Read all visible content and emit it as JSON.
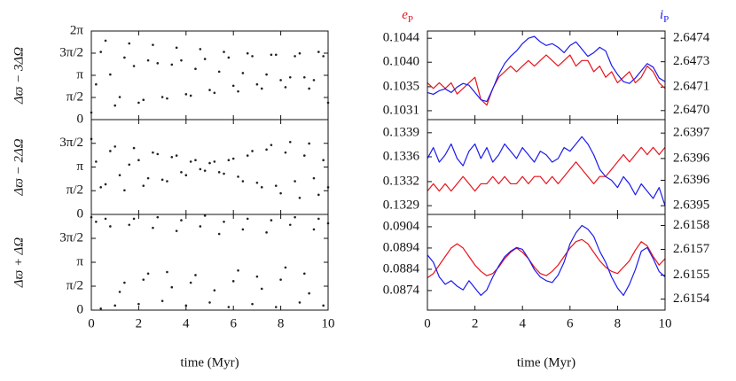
{
  "chart_data": [
    {
      "type": "scatter",
      "ylabel": "Δϖ − 3ΔΩ",
      "color": "#222222",
      "xlim": [
        0,
        10
      ],
      "xticks": [
        0,
        2,
        4,
        6,
        8,
        10
      ],
      "ylim": [
        0,
        6.2832
      ],
      "yticks": [
        0,
        {
          "value": 1.5708,
          "label": "π/2"
        },
        {
          "value": 3.1416,
          "label": "π"
        },
        {
          "value": 4.7124,
          "label": "3π/2"
        },
        {
          "value": 6.2832,
          "label": "2π"
        }
      ],
      "x": [
        0,
        0.2,
        0.4,
        0.6,
        0.8,
        1,
        1.2,
        1.4,
        1.6,
        1.8,
        2,
        2.2,
        2.4,
        2.6,
        2.8,
        3,
        3.2,
        3.4,
        3.6,
        3.8,
        4,
        4.2,
        4.4,
        4.6,
        4.8,
        5,
        5.2,
        5.4,
        5.6,
        5.8,
        6,
        6.2,
        6.4,
        6.6,
        6.8,
        7,
        7.2,
        7.4,
        7.6,
        7.8,
        8,
        8.2,
        8.4,
        8.6,
        8.8,
        9,
        9.2,
        9.4,
        9.6,
        9.8,
        10
      ],
      "values": [
        0.5,
        2.5,
        4.8,
        5.6,
        3.2,
        1.0,
        1.6,
        4.4,
        5.4,
        3.8,
        1.2,
        1.4,
        4.2,
        5.3,
        4.0,
        1.6,
        1.5,
        3.9,
        5.1,
        4.2,
        1.8,
        1.7,
        3.6,
        5.0,
        4.3,
        2.1,
        1.9,
        3.4,
        4.8,
        4.4,
        2.4,
        2.0,
        3.3,
        4.7,
        4.5,
        2.5,
        2.2,
        3.2,
        4.6,
        4.6,
        2.8,
        2.3,
        3.0,
        4.5,
        4.7,
        3.0,
        2.2,
        2.8,
        4.8,
        4.5,
        1.2
      ]
    },
    {
      "type": "scatter",
      "ylabel": "Δϖ − 2ΔΩ",
      "color": "#222222",
      "xlim": [
        0,
        10
      ],
      "xticks": [
        0,
        2,
        4,
        6,
        8,
        10
      ],
      "ylim": [
        0,
        6.2832
      ],
      "yticks": [
        0,
        {
          "value": 1.5708,
          "label": "π/2"
        },
        {
          "value": 3.1416,
          "label": "π"
        },
        {
          "value": 4.7124,
          "label": "3π/2"
        }
      ],
      "x": [
        0,
        0.2,
        0.4,
        0.6,
        0.8,
        1,
        1.2,
        1.4,
        1.6,
        1.8,
        2,
        2.2,
        2.4,
        2.6,
        2.8,
        3,
        3.2,
        3.4,
        3.6,
        3.8,
        4,
        4.2,
        4.4,
        4.6,
        4.8,
        5,
        5.2,
        5.4,
        5.6,
        5.8,
        6,
        6.2,
        6.4,
        6.6,
        6.8,
        7,
        7.2,
        7.4,
        7.6,
        7.8,
        8,
        8.2,
        8.4,
        8.6,
        8.8,
        9,
        9.2,
        9.4,
        9.6,
        9.8,
        10
      ],
      "values": [
        5.0,
        3.5,
        1.8,
        2.0,
        4.2,
        4.5,
        2.6,
        1.6,
        3.3,
        4.4,
        3.6,
        1.9,
        2.4,
        4.1,
        4.0,
        2.3,
        2.2,
        3.8,
        3.9,
        2.8,
        2.6,
        3.5,
        3.6,
        3.0,
        2.9,
        3.4,
        3.5,
        2.8,
        2.7,
        3.6,
        3.7,
        2.5,
        2.2,
        3.9,
        4.2,
        2.1,
        1.8,
        4.3,
        4.6,
        1.9,
        1.4,
        4.1,
        4.8,
        2.2,
        1.1,
        3.9,
        4.7,
        2.4,
        1.3,
        3.6,
        1.8
      ]
    },
    {
      "type": "scatter",
      "ylabel": "Δϖ + ΔΩ",
      "xlabel": "time (Myr)",
      "color": "#222222",
      "xlim": [
        0,
        10
      ],
      "xticks": [
        0,
        2,
        4,
        6,
        8,
        10
      ],
      "ylim": [
        0,
        6.2832
      ],
      "yticks": [
        0,
        {
          "value": 1.5708,
          "label": "π/2"
        },
        {
          "value": 3.1416,
          "label": "π"
        },
        {
          "value": 4.7124,
          "label": "3π/2"
        }
      ],
      "x": [
        0,
        0.2,
        0.4,
        0.6,
        0.8,
        1,
        1.2,
        1.4,
        1.6,
        1.8,
        2,
        2.2,
        2.4,
        2.6,
        2.8,
        3,
        3.2,
        3.4,
        3.6,
        3.8,
        4,
        4.2,
        4.4,
        4.6,
        4.8,
        5,
        5.2,
        5.4,
        5.6,
        5.8,
        6,
        6.2,
        6.4,
        6.6,
        6.8,
        7,
        7.2,
        7.4,
        7.6,
        7.8,
        8,
        8.2,
        8.4,
        8.6,
        8.8,
        9,
        9.2,
        9.4,
        9.6,
        9.8,
        10
      ],
      "values": [
        6.1,
        5.8,
        0.1,
        6.0,
        5.5,
        0.3,
        1.2,
        1.8,
        5.6,
        6.0,
        0.4,
        2.0,
        2.4,
        5.4,
        6.1,
        0.6,
        2.5,
        1.5,
        5.2,
        5.9,
        0.3,
        1.8,
        2.3,
        5.5,
        6.2,
        0.5,
        1.3,
        5.0,
        5.8,
        0.2,
        1.9,
        2.6,
        5.3,
        6.0,
        0.4,
        2.2,
        1.4,
        5.1,
        5.9,
        0.2,
        2.0,
        2.8,
        5.6,
        6.1,
        0.5,
        2.4,
        1.1,
        5.3,
        6.0,
        0.3,
        5.7
      ]
    },
    {
      "type": "line",
      "xlim": [
        0,
        10
      ],
      "xticks": [
        0,
        2,
        4,
        6,
        8,
        10
      ],
      "ylim": [
        0.10294,
        0.10453
      ],
      "yticks": [
        {
          "value": 0.1031,
          "label": "0.1031"
        },
        {
          "value": 0.10353,
          "label": "0.1035"
        },
        {
          "value": 0.10397,
          "label": "0.1040"
        },
        {
          "value": 0.1044,
          "label": "0.1044"
        }
      ],
      "y2lim": [
        2.64695,
        2.64744
      ],
      "y2ticks": [
        {
          "value": 2.647,
          "label": "2.6470"
        },
        {
          "value": 2.64713,
          "label": "2.6471"
        },
        {
          "value": 2.64727,
          "label": "2.6473"
        },
        {
          "value": 2.6474,
          "label": "2.6474"
        }
      ],
      "x": [
        0,
        0.25,
        0.5,
        0.75,
        1,
        1.25,
        1.5,
        1.75,
        2,
        2.25,
        2.5,
        2.75,
        3,
        3.25,
        3.5,
        3.75,
        4,
        4.25,
        4.5,
        4.75,
        5,
        5.25,
        5.5,
        5.75,
        6,
        6.25,
        6.5,
        6.75,
        7,
        7.25,
        7.5,
        7.75,
        8,
        8.25,
        8.5,
        8.75,
        9,
        9.25,
        9.5,
        9.75,
        10
      ],
      "series": [
        {
          "name": "e",
          "subscript": "P",
          "color": "#e8141c",
          "values": [
            0.1036,
            0.1035,
            0.1036,
            0.1035,
            0.1036,
            0.1034,
            0.1035,
            0.1036,
            0.1037,
            0.1033,
            0.1032,
            0.1035,
            0.1037,
            0.1038,
            0.1039,
            0.1038,
            0.1039,
            0.104,
            0.1039,
            0.104,
            0.1041,
            0.104,
            0.1039,
            0.104,
            0.1041,
            0.1039,
            0.104,
            0.104,
            0.1038,
            0.1039,
            0.1037,
            0.1038,
            0.1036,
            0.1037,
            0.1038,
            0.1036,
            0.1037,
            0.1039,
            0.1038,
            0.1036,
            0.1035
          ]
        },
        {
          "name": "i",
          "subscript": "P",
          "color": "#1a1aef",
          "axis": "y2",
          "values": [
            2.6471,
            2.64709,
            2.64711,
            2.64712,
            2.6471,
            2.64713,
            2.64715,
            2.64714,
            2.6471,
            2.64706,
            2.64705,
            2.64712,
            2.6472,
            2.64726,
            2.6473,
            2.64733,
            2.64737,
            2.6474,
            2.64741,
            2.64738,
            2.64736,
            2.64737,
            2.64735,
            2.64732,
            2.64736,
            2.64738,
            2.64734,
            2.6473,
            2.64732,
            2.64735,
            2.64733,
            2.64725,
            2.6472,
            2.64716,
            2.64715,
            2.64718,
            2.64722,
            2.64726,
            2.64724,
            2.64718,
            2.64716
          ]
        }
      ]
    },
    {
      "type": "line",
      "xlim": [
        0,
        10
      ],
      "xticks": [
        0,
        2,
        4,
        6,
        8,
        10
      ],
      "ylim": [
        0.13278,
        0.13408
      ],
      "yticks": [
        {
          "value": 0.1329,
          "label": "0.1329"
        },
        {
          "value": 0.13323,
          "label": "0.1332"
        },
        {
          "value": 0.13357,
          "label": "0.1336"
        },
        {
          "value": 0.1339,
          "label": "0.1339"
        }
      ],
      "y2lim": [
        2.639476,
        2.639737
      ],
      "y2ticks": [
        {
          "value": 2.6395,
          "label": "2.6395"
        },
        {
          "value": 2.63957,
          "label": "2.6396"
        },
        {
          "value": 2.63963,
          "label": "2.6396"
        },
        {
          "value": 2.6397,
          "label": "2.6397"
        }
      ],
      "x": [
        0,
        0.25,
        0.5,
        0.75,
        1,
        1.25,
        1.5,
        1.75,
        2,
        2.25,
        2.5,
        2.75,
        3,
        3.25,
        3.5,
        3.75,
        4,
        4.25,
        4.5,
        4.75,
        5,
        5.25,
        5.5,
        5.75,
        6,
        6.25,
        6.5,
        6.75,
        7,
        7.25,
        7.5,
        7.75,
        8,
        8.25,
        8.5,
        8.75,
        9,
        9.25,
        9.5,
        9.75,
        10
      ],
      "series": [
        {
          "color": "#e8141c",
          "values": [
            0.1331,
            0.1332,
            0.1331,
            0.1332,
            0.1331,
            0.1332,
            0.1333,
            0.1332,
            0.1331,
            0.1332,
            0.1332,
            0.1333,
            0.1332,
            0.1333,
            0.1332,
            0.1332,
            0.1333,
            0.1332,
            0.1333,
            0.1333,
            0.1332,
            0.1333,
            0.1332,
            0.1333,
            0.1334,
            0.1335,
            0.1334,
            0.1333,
            0.1332,
            0.1333,
            0.1333,
            0.1334,
            0.1335,
            0.1336,
            0.1335,
            0.1336,
            0.1337,
            0.1336,
            0.1337,
            0.1336,
            0.1337
          ]
        },
        {
          "color": "#1a1aef",
          "axis": "y2",
          "values": [
            2.63963,
            2.63966,
            2.63962,
            2.63964,
            2.63967,
            2.63963,
            2.63961,
            2.63965,
            2.63967,
            2.63963,
            2.63966,
            2.63962,
            2.63964,
            2.63967,
            2.63965,
            2.63963,
            2.63966,
            2.63964,
            2.63962,
            2.63965,
            2.63964,
            2.63962,
            2.63963,
            2.63966,
            2.63965,
            2.63967,
            2.63969,
            2.63967,
            2.63964,
            2.6396,
            2.63958,
            2.63957,
            2.63955,
            2.63958,
            2.63956,
            2.63953,
            2.63956,
            2.63954,
            2.63952,
            2.63955,
            2.6395
          ]
        }
      ]
    },
    {
      "type": "line",
      "xlabel": "time (Myr)",
      "xlim": [
        0,
        10
      ],
      "xticks": [
        0,
        2,
        4,
        6,
        8,
        10
      ],
      "ylim": [
        0.08648,
        0.09098
      ],
      "yticks": [
        0.0874,
        0.0884,
        0.0894,
        0.0904
      ],
      "y2lim": [
        2.61534,
        2.61586
      ],
      "y2ticks": [
        {
          "value": 2.6154,
          "label": "2.6154"
        },
        {
          "value": 2.61553,
          "label": "2.6155"
        },
        {
          "value": 2.61567,
          "label": "2.6157"
        },
        {
          "value": 2.6158,
          "label": "2.6158"
        }
      ],
      "x": [
        0,
        0.25,
        0.5,
        0.75,
        1,
        1.25,
        1.5,
        1.75,
        2,
        2.25,
        2.5,
        2.75,
        3,
        3.25,
        3.5,
        3.75,
        4,
        4.25,
        4.5,
        4.75,
        5,
        5.25,
        5.5,
        5.75,
        6,
        6.25,
        6.5,
        6.75,
        7,
        7.25,
        7.5,
        7.75,
        8,
        8.25,
        8.5,
        8.75,
        9,
        9.25,
        9.5,
        9.75,
        10
      ],
      "series": [
        {
          "color": "#e8141c",
          "values": [
            0.088,
            0.0882,
            0.0886,
            0.089,
            0.0894,
            0.0896,
            0.0894,
            0.089,
            0.0886,
            0.0883,
            0.0881,
            0.0882,
            0.0885,
            0.0889,
            0.0892,
            0.0894,
            0.0892,
            0.0889,
            0.0885,
            0.0882,
            0.0881,
            0.0883,
            0.0886,
            0.089,
            0.0894,
            0.0897,
            0.0898,
            0.0896,
            0.0892,
            0.0888,
            0.0885,
            0.0883,
            0.0882,
            0.0885,
            0.0888,
            0.0893,
            0.0897,
            0.0895,
            0.089,
            0.0886,
            0.0889
          ]
        },
        {
          "color": "#1a1aef",
          "axis": "y2",
          "values": [
            2.61564,
            2.6156,
            2.61552,
            2.61548,
            2.6155,
            2.61547,
            2.61545,
            2.6155,
            2.61546,
            2.61542,
            2.61545,
            2.61552,
            2.61558,
            2.61563,
            2.61566,
            2.61568,
            2.61567,
            2.61562,
            2.61556,
            2.61552,
            2.6155,
            2.61549,
            2.61553,
            2.6156,
            2.6157,
            2.61576,
            2.6158,
            2.61578,
            2.61574,
            2.61566,
            2.6156,
            2.61552,
            2.61546,
            2.61542,
            2.61548,
            2.61556,
            2.61566,
            2.61568,
            2.61562,
            2.61555,
            2.61552
          ]
        }
      ]
    }
  ]
}
